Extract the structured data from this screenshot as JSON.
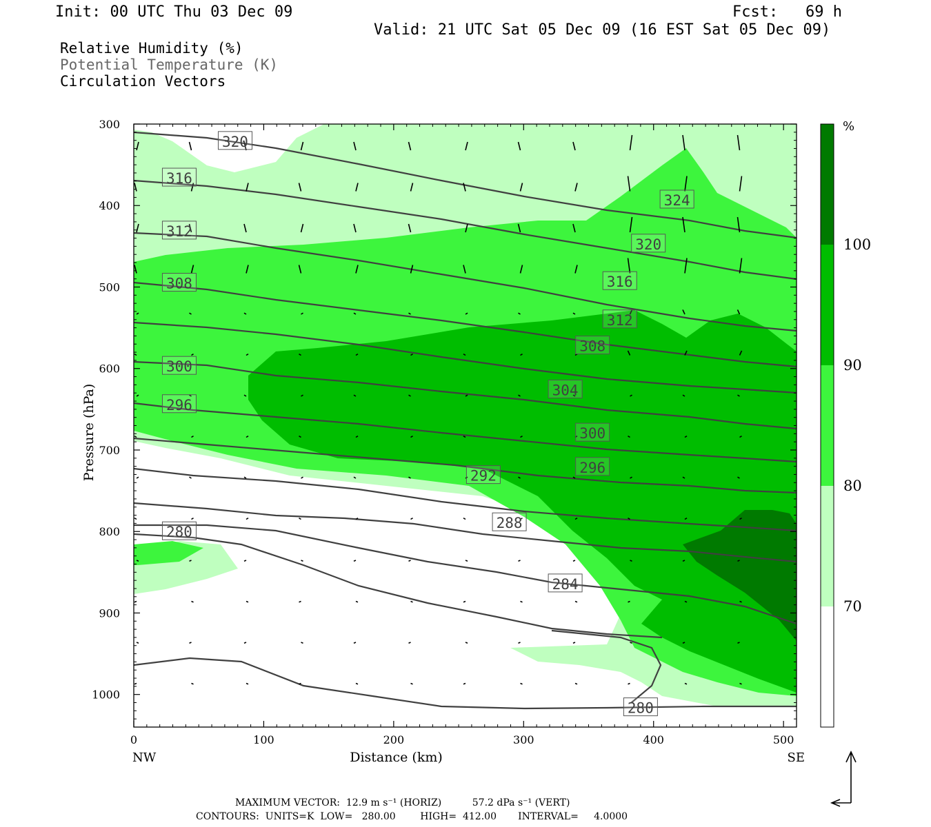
{
  "header": {
    "init": "Init: 00 UTC Thu 03 Dec 09",
    "fcst": "Fcst:   69 h",
    "valid": "Valid: 21 UTC Sat 05 Dec 09 (16 EST Sat 05 Dec 09)"
  },
  "legend_titles": [
    "Relative Humidity (%)",
    "Potential Temperature (K)",
    "Circulation Vectors"
  ],
  "footer": {
    "line1": "MAXIMUM VECTOR:  12.9 m s⁻¹ (HORIZ)          57.2 dPa s⁻¹ (VERT)",
    "line2": "CONTOURS:  UNITS=K  LOW=   280.00        HIGH=  412.00       INTERVAL=     4.0000"
  },
  "colors": {
    "rh70": "#bfffbf",
    "rh80": "#3df53d",
    "rh90": "#00bd00",
    "rh100": "#007a00",
    "theta": "#404040"
  },
  "chart_data": {
    "type": "contour-cross-section",
    "xlabel": "Distance (km)",
    "ylabel": "Pressure (hPa)",
    "xlim": [
      0,
      510
    ],
    "ylim": [
      1040,
      300
    ],
    "x_ticks": [
      "0",
      "100",
      "200",
      "300",
      "400",
      "500"
    ],
    "y_ticks": [
      "300",
      "400",
      "500",
      "600",
      "700",
      "800",
      "900",
      "1000"
    ],
    "x_end_labels": [
      "NW",
      "SE"
    ],
    "colorbar": {
      "unit": "%",
      "levels": [
        "70",
        "80",
        "90",
        "100"
      ]
    },
    "theta_labels": [
      {
        "text": "320",
        "x": 65,
        "p": 321
      },
      {
        "text": "316",
        "x": 22,
        "p": 366
      },
      {
        "text": "312",
        "x": 22,
        "p": 431
      },
      {
        "text": "308",
        "x": 22,
        "p": 495
      },
      {
        "text": "300",
        "x": 22,
        "p": 597
      },
      {
        "text": "296",
        "x": 22,
        "p": 644
      },
      {
        "text": "280",
        "x": 22,
        "p": 800
      },
      {
        "text": "324",
        "x": 405,
        "p": 393
      },
      {
        "text": "320",
        "x": 383,
        "p": 447
      },
      {
        "text": "316",
        "x": 361,
        "p": 493
      },
      {
        "text": "312",
        "x": 361,
        "p": 540
      },
      {
        "text": "308",
        "x": 340,
        "p": 572
      },
      {
        "text": "304",
        "x": 319,
        "p": 626
      },
      {
        "text": "300",
        "x": 340,
        "p": 679
      },
      {
        "text": "296",
        "x": 340,
        "p": 721
      },
      {
        "text": "292",
        "x": 256,
        "p": 731
      },
      {
        "text": "288",
        "x": 276,
        "p": 789
      },
      {
        "text": "284",
        "x": 319,
        "p": 864
      },
      {
        "text": "280",
        "x": 377,
        "p": 1016
      }
    ]
  }
}
